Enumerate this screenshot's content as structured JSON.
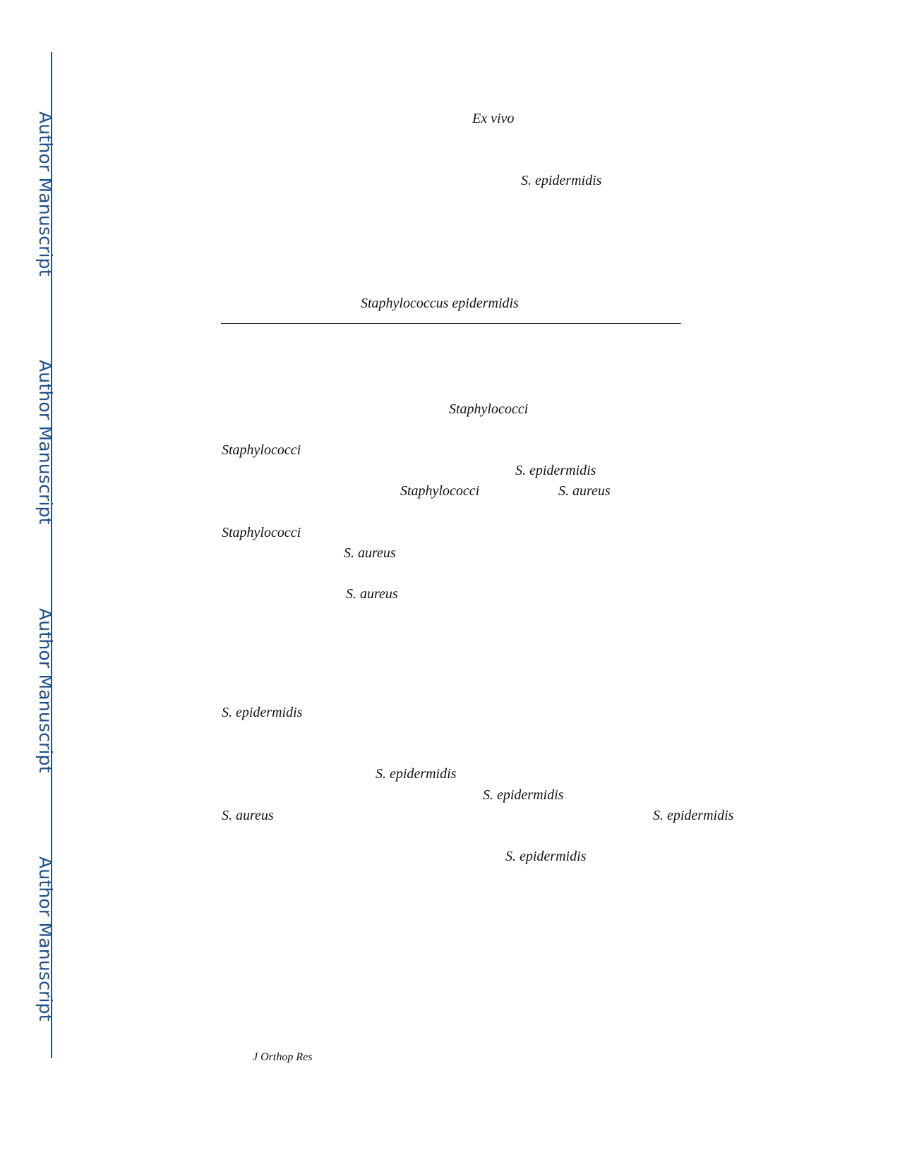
{
  "watermark": {
    "label": "Author Manuscript",
    "color": "#1f4f8a"
  },
  "fragments": {
    "f1": "Ex vivo",
    "f2": "S. epidermidis",
    "f3": "Staphylococcus epidermidis",
    "f4": "Staphylococci",
    "f5": "Staphylococci",
    "f6": "S. epidermidis",
    "f7": "Staphylococci",
    "f8": "S. aureus",
    "f9": "Staphylococci",
    "f10": "S. aureus",
    "f11": "S. aureus",
    "f12": "S. epidermidis",
    "f13": "S. epidermidis",
    "f14": "S. epidermidis",
    "f15": "S. aureus",
    "f16": "S. epidermidis",
    "f17": "S. epidermidis"
  },
  "footer": {
    "journal": "J Orthop Res"
  }
}
